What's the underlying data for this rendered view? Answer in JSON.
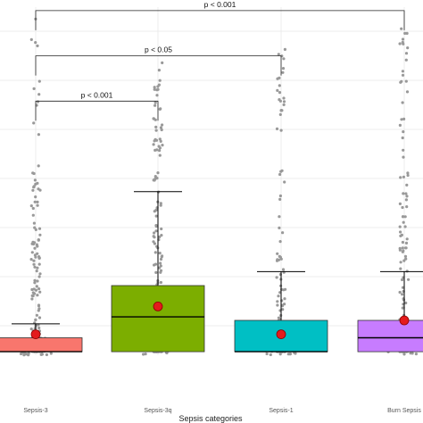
{
  "chart_data": {
    "type": "boxplot",
    "xlabel": "Sepsis categories",
    "ylabel": "",
    "categories": [
      "Sepsis-3",
      "Sepsis-3q",
      "Sepsis-1",
      "Burn Sepsis"
    ],
    "ylim": [
      0,
      100
    ],
    "grid": true,
    "legend": "none",
    "boxes": [
      {
        "category": "Sepsis-3",
        "q1": 1,
        "median": 1,
        "q3": 5,
        "whisker_low": 0,
        "whisker_high": 9,
        "mean": 6,
        "color": "#F8766D"
      },
      {
        "category": "Sepsis-3q",
        "q1": 1,
        "median": 11,
        "q3": 20,
        "whisker_low": 0,
        "whisker_high": 47,
        "mean": 14,
        "color": "#7CAE00"
      },
      {
        "category": "Sepsis-1",
        "q1": 1,
        "median": 1,
        "q3": 10,
        "whisker_low": 0,
        "whisker_high": 24,
        "mean": 6,
        "color": "#00BFC4"
      },
      {
        "category": "Burn Sepsis",
        "q1": 1,
        "median": 5,
        "q3": 10,
        "whisker_low": 0,
        "whisker_high": 24,
        "mean": 10,
        "color": "#C77CFF"
      }
    ],
    "outliers": [
      {
        "category": "Sepsis-3",
        "max": 98,
        "count": 150
      },
      {
        "category": "Sepsis-3q",
        "max": 87,
        "count": 200
      },
      {
        "category": "Sepsis-1",
        "max": 97,
        "count": 120
      },
      {
        "category": "Burn Sepsis",
        "max": 94,
        "count": 140
      }
    ],
    "comparisons": [
      {
        "from": "Sepsis-3",
        "to": "Burn Sepsis",
        "label": "p < 0.001",
        "level": 99
      },
      {
        "from": "Sepsis-3",
        "to": "Sepsis-1",
        "label": "p < 0.05",
        "level": 86
      },
      {
        "from": "Sepsis-3",
        "to": "Sepsis-3q",
        "label": "p < 0.001",
        "level": 73
      }
    ],
    "colors": {
      "mean_point": "#E41A1C",
      "jitter": "#999999",
      "grid": "#e8e8e8"
    }
  }
}
